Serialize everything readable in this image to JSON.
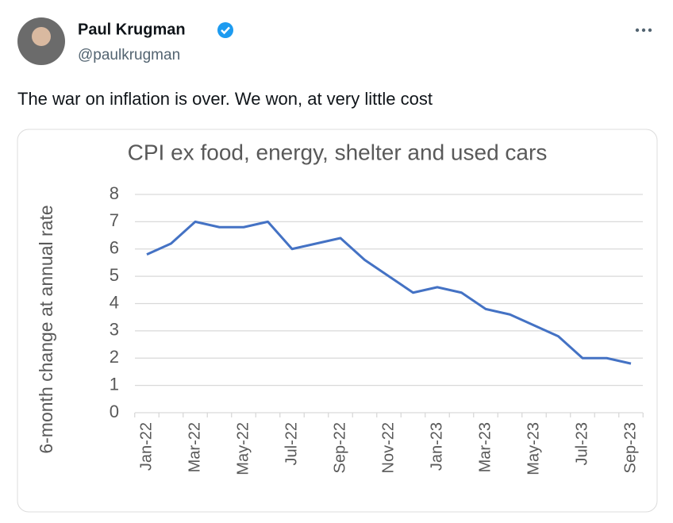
{
  "tweet": {
    "name": "Paul Krugman",
    "handle": "@paulkrugman",
    "text": "The war on inflation is over. We won, at very little cost"
  },
  "chart_data": {
    "type": "line",
    "title": "CPI ex food, energy, shelter and used cars",
    "y_label": "6-month change at annual rate",
    "categories": [
      "Jan-22",
      null,
      "Mar-22",
      null,
      "May-22",
      null,
      "Jul-22",
      null,
      "Sep-22",
      null,
      "Nov-22",
      null,
      "Jan-23",
      null,
      "Mar-23",
      null,
      "May-23",
      null,
      "Jul-23",
      null,
      "Sep-23"
    ],
    "values": [
      5.8,
      6.2,
      7.0,
      6.8,
      6.8,
      7.0,
      6.0,
      6.2,
      6.4,
      5.6,
      5.0,
      4.4,
      4.6,
      4.4,
      3.8,
      3.6,
      3.2,
      2.8,
      2.0,
      2.0,
      1.8
    ],
    "color": "#4472c4",
    "ylim": [
      0,
      8
    ],
    "yticks": [
      0,
      1,
      2,
      3,
      4,
      5,
      6,
      7,
      8
    ],
    "grid": true
  }
}
